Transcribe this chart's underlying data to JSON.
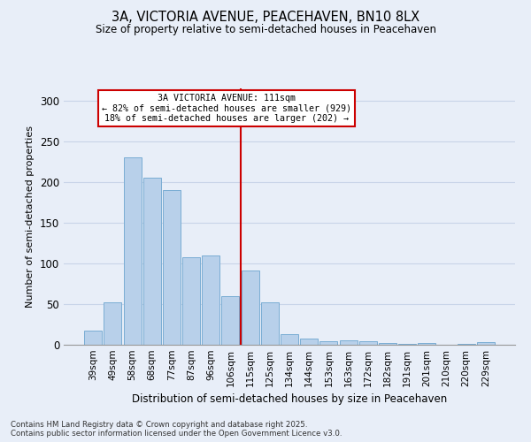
{
  "title": "3A, VICTORIA AVENUE, PEACEHAVEN, BN10 8LX",
  "subtitle": "Size of property relative to semi-detached houses in Peacehaven",
  "xlabel": "Distribution of semi-detached houses by size in Peacehaven",
  "ylabel": "Number of semi-detached properties",
  "categories": [
    "39sqm",
    "49sqm",
    "58sqm",
    "68sqm",
    "77sqm",
    "87sqm",
    "96sqm",
    "106sqm",
    "115sqm",
    "125sqm",
    "134sqm",
    "144sqm",
    "153sqm",
    "163sqm",
    "172sqm",
    "182sqm",
    "191sqm",
    "201sqm",
    "210sqm",
    "220sqm",
    "229sqm"
  ],
  "values": [
    17,
    52,
    230,
    205,
    190,
    108,
    110,
    60,
    91,
    52,
    13,
    8,
    4,
    5,
    4,
    2,
    1,
    2,
    0,
    1,
    3
  ],
  "bar_color": "#b8d0ea",
  "bar_edge_color": "#7aadd4",
  "annotation_text_line1": "3A VICTORIA AVENUE: 111sqm",
  "annotation_text_line2": "← 82% of semi-detached houses are smaller (929)",
  "annotation_text_line3": "18% of semi-detached houses are larger (202) →",
  "annotation_box_color": "#ffffff",
  "annotation_box_edge_color": "#cc0000",
  "vline_color": "#cc0000",
  "grid_color": "#c8d4e8",
  "background_color": "#e8eef8",
  "ylim": [
    0,
    315
  ],
  "yticks": [
    0,
    50,
    100,
    150,
    200,
    250,
    300
  ],
  "footer_line1": "Contains HM Land Registry data © Crown copyright and database right 2025.",
  "footer_line2": "Contains public sector information licensed under the Open Government Licence v3.0."
}
